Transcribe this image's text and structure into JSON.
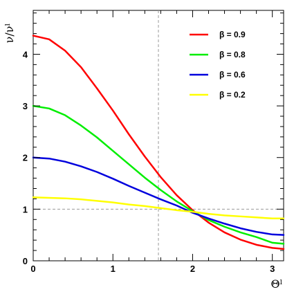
{
  "chart_data": {
    "type": "line",
    "xlabel": "Θˡ",
    "ylabel": "ν/νˡ",
    "xlim": [
      0,
      3.1416
    ],
    "ylim": [
      0,
      4.85
    ],
    "xticks": [
      "0",
      "1",
      "2",
      "3"
    ],
    "yticks": [
      "0",
      "1",
      "2",
      "3",
      "4"
    ],
    "grid": false,
    "reference_lines": {
      "x": 1.5708,
      "y": 1.0
    },
    "legend_position": "top-right",
    "series": [
      {
        "name": "β = 0.9",
        "color": "#ff0000",
        "x": [
          0,
          0.2,
          0.4,
          0.6,
          0.8,
          1.0,
          1.2,
          1.4,
          1.6,
          1.8,
          2.0,
          2.2,
          2.4,
          2.6,
          2.8,
          3.0,
          3.1416
        ],
        "y": [
          4.36,
          4.29,
          4.07,
          3.75,
          3.34,
          2.91,
          2.45,
          2.02,
          1.62,
          1.27,
          0.98,
          0.74,
          0.55,
          0.41,
          0.31,
          0.25,
          0.23
        ]
      },
      {
        "name": "β = 0.8",
        "color": "#00ee00",
        "x": [
          0,
          0.2,
          0.4,
          0.6,
          0.8,
          1.0,
          1.2,
          1.4,
          1.6,
          1.8,
          2.0,
          2.2,
          2.4,
          2.6,
          2.8,
          3.0,
          3.1416
        ],
        "y": [
          3.0,
          2.95,
          2.82,
          2.62,
          2.39,
          2.13,
          1.87,
          1.61,
          1.37,
          1.15,
          0.96,
          0.79,
          0.66,
          0.55,
          0.46,
          0.35,
          0.33
        ]
      },
      {
        "name": "β = 0.6",
        "color": "#0000dd",
        "x": [
          0,
          0.2,
          0.4,
          0.6,
          0.8,
          1.0,
          1.2,
          1.4,
          1.6,
          1.8,
          2.0,
          2.2,
          2.4,
          2.6,
          2.8,
          3.0,
          3.1416
        ],
        "y": [
          2.0,
          1.98,
          1.92,
          1.83,
          1.72,
          1.59,
          1.45,
          1.32,
          1.19,
          1.07,
          0.93,
          0.82,
          0.72,
          0.63,
          0.56,
          0.51,
          0.5
        ]
      },
      {
        "name": "β = 0.2",
        "color": "#ffff00",
        "x": [
          0,
          0.2,
          0.4,
          0.6,
          0.8,
          1.0,
          1.2,
          1.4,
          1.6,
          1.8,
          2.0,
          2.2,
          2.4,
          2.6,
          2.8,
          3.0,
          3.1416
        ],
        "y": [
          1.23,
          1.22,
          1.21,
          1.19,
          1.16,
          1.13,
          1.09,
          1.06,
          1.02,
          0.98,
          0.95,
          0.91,
          0.88,
          0.86,
          0.84,
          0.82,
          0.82
        ]
      }
    ]
  }
}
